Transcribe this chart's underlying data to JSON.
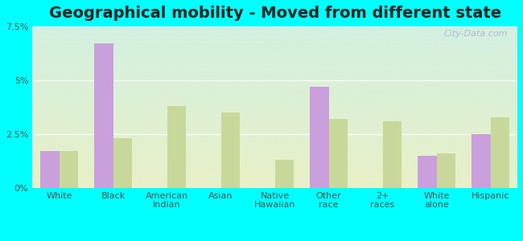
{
  "title": "Geographical mobility - Moved from different state",
  "categories": [
    "White",
    "Black",
    "American\nIndian",
    "Asian",
    "Native\nHawaiian",
    "Other\nrace",
    "2+\nraces",
    "White\nalone",
    "Hispanic"
  ],
  "homeacre_values": [
    1.7,
    6.7,
    0.0,
    0.0,
    0.0,
    4.7,
    0.0,
    1.5,
    2.5
  ],
  "pa_values": [
    1.7,
    2.3,
    3.8,
    3.5,
    1.3,
    3.2,
    3.1,
    1.6,
    3.3
  ],
  "homeacre_color": "#c9a0dc",
  "pa_color": "#c8d89a",
  "bar_width": 0.35,
  "ylim": [
    0,
    7.5
  ],
  "yticks": [
    0,
    2.5,
    5.0,
    7.5
  ],
  "ytick_labels": [
    "0%",
    "2.5%",
    "5%",
    "7.5%"
  ],
  "outer_bg": "#00ffff",
  "watermark": "City-Data.com",
  "title_fontsize": 14,
  "tick_fontsize": 8,
  "legend_fontsize": 10,
  "grid_color": "#ffffff",
  "grid_alpha": 0.8
}
